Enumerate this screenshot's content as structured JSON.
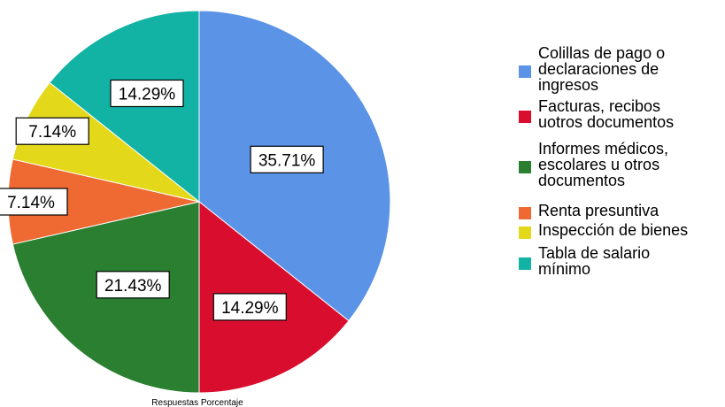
{
  "chart_data": {
    "type": "pie",
    "title": "",
    "caption": "Respuestas Porcentaje",
    "legend_position": "right",
    "slices": [
      {
        "label": [
          "Colillas de pago o",
          "declaraciones de",
          "ingresos"
        ],
        "value": 35.71,
        "display": "35.71%",
        "color": "#5b93e6"
      },
      {
        "label": [
          "Facturas, recibos",
          "uotros documentos"
        ],
        "value": 14.29,
        "display": "14.29%",
        "color": "#d90e2e"
      },
      {
        "label": [
          "Informes médicos,",
          "escolares u otros",
          "documentos"
        ],
        "value": 21.43,
        "display": "21.43%",
        "color": "#2a8030"
      },
      {
        "label": [
          "Renta presuntiva"
        ],
        "value": 7.14,
        "display": "7.14%",
        "color": "#ee6a32"
      },
      {
        "label": [
          "Inspección de bienes"
        ],
        "value": 7.14,
        "display": "7.14%",
        "color": "#e4d81a"
      },
      {
        "label": [
          "Tabla de salario",
          "mínimo"
        ],
        "value": 14.29,
        "display": "14.29%",
        "color": "#12b3a4"
      }
    ]
  }
}
